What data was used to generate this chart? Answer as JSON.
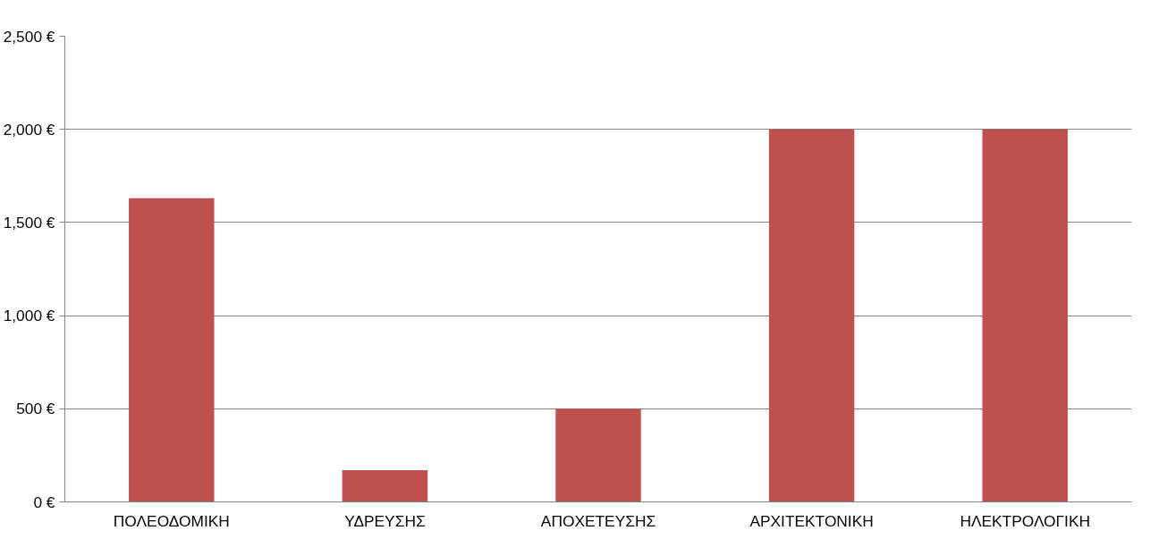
{
  "chart_data": {
    "type": "bar",
    "categories": [
      "ΠΟΛΕΟΔΟΜΙΚΗ",
      "ΥΔΡΕΥΣΗΣ",
      "ΑΠΟΧΕΤΕΥΣΗΣ",
      "ΑΡΧΙΤΕΚΤΟΝΙΚΗ",
      "ΗΛΕΚΤΡΟΛΟΓΙΚΗ"
    ],
    "values": [
      1630,
      170,
      500,
      2000,
      2000
    ],
    "color": "#c0504d",
    "ylim": [
      0,
      2500
    ],
    "yticks": [
      {
        "value": 0,
        "label": "0 €"
      },
      {
        "value": 500,
        "label": "500 €"
      },
      {
        "value": 1000,
        "label": "1,000 €"
      },
      {
        "value": 1500,
        "label": "1,500 €"
      },
      {
        "value": 2000,
        "label": "2,000 €"
      },
      {
        "value": 2500,
        "label": "2,500 €"
      }
    ],
    "grid": "y"
  }
}
